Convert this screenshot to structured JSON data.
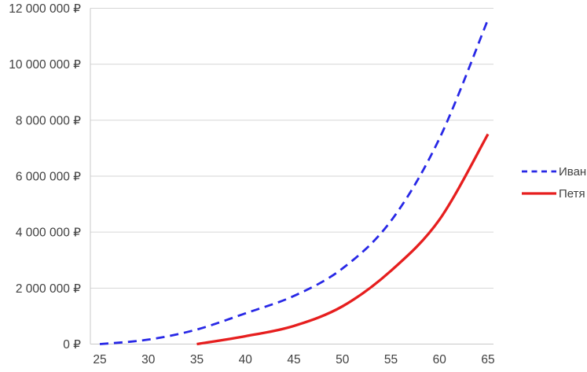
{
  "chart_data": {
    "type": "line",
    "title": "",
    "currency_symbol": "₽",
    "grid": "horizontal",
    "legend_position": "right",
    "x_axis": {
      "min": 25,
      "max": 65,
      "step": 5,
      "tick_labels": [
        "25",
        "30",
        "35",
        "40",
        "45",
        "50",
        "55",
        "60",
        "65"
      ]
    },
    "y_axis": {
      "min": 0,
      "max": 12000000,
      "step": 2000000,
      "tick_labels": [
        "0 ₽",
        "2 000 000 ₽",
        "4 000 000 ₽",
        "6 000 000 ₽",
        "8 000 000 ₽",
        "10 000 000 ₽",
        "12 000 000 ₽"
      ]
    },
    "series": [
      {
        "name": "Иван",
        "color": "#2828e6",
        "style": "dashed",
        "points": [
          {
            "x": 25,
            "y": 0
          },
          {
            "x": 30,
            "y": 160000
          },
          {
            "x": 35,
            "y": 520000
          },
          {
            "x": 40,
            "y": 1100000
          },
          {
            "x": 45,
            "y": 1720000
          },
          {
            "x": 50,
            "y": 2700000
          },
          {
            "x": 55,
            "y": 4400000
          },
          {
            "x": 60,
            "y": 7350000
          },
          {
            "x": 65,
            "y": 11600000
          }
        ]
      },
      {
        "name": "Петя",
        "color": "#e61e1e",
        "style": "solid",
        "points": [
          {
            "x": 35,
            "y": 0
          },
          {
            "x": 40,
            "y": 280000
          },
          {
            "x": 45,
            "y": 650000
          },
          {
            "x": 50,
            "y": 1350000
          },
          {
            "x": 55,
            "y": 2620000
          },
          {
            "x": 60,
            "y": 4450000
          },
          {
            "x": 65,
            "y": 7500000
          }
        ]
      }
    ]
  },
  "colors": {
    "grid_line": "#d6d6d6",
    "axis_line": "#c9c9c9",
    "tick_text": "#404040",
    "background": "#ffffff"
  }
}
